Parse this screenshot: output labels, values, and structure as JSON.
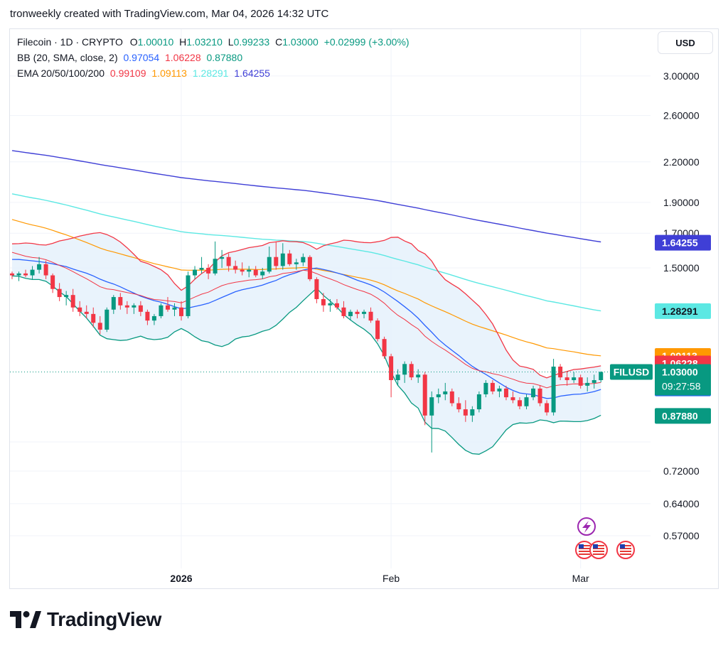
{
  "byline": "tronweekly created with TradingView.com, Mar 04, 2026 14:32 UTC",
  "currency_button": "USD",
  "brand": "TradingView",
  "legend": {
    "symbol": "Filecoin · 1D · CRYPTO",
    "ohlc": [
      {
        "label": "O",
        "value": "1.00010"
      },
      {
        "label": "H",
        "value": "1.03210"
      },
      {
        "label": "L",
        "value": "0.99233"
      },
      {
        "label": "C",
        "value": "1.03000"
      }
    ],
    "change": "+0.02999 (+3.00%)",
    "bb_label": "BB (20, SMA, close, 2)",
    "bb_values": [
      "0.97054",
      "1.06228",
      "0.87880"
    ],
    "ema_label": "EMA 20/50/100/200",
    "ema_values": [
      "0.99109",
      "1.09113",
      "1.28291",
      "1.64255"
    ]
  },
  "colors": {
    "up": "#089981",
    "down": "#f23645",
    "ema20": "#f23645",
    "ema50": "#ff9800",
    "ema100": "#5ce8e3",
    "ema200": "#3f3fd6",
    "bb_basis": "#2962ff",
    "bb_upper": "#f23645",
    "bb_lower": "#089981",
    "bb_fill": "#e3f0fb"
  },
  "chart_data": {
    "type": "candlestick",
    "y_scale": "log",
    "y_ticks": [
      "3.00000",
      "2.60000",
      "2.20000",
      "1.90000",
      "1.70000",
      "1.50000",
      "0.72000",
      "0.64000",
      "0.57000"
    ],
    "x_ticks": [
      "2026",
      "Feb",
      "Mar"
    ],
    "dates": [
      "2025-12-07",
      "2025-12-08",
      "2025-12-09",
      "2025-12-10",
      "2025-12-11",
      "2025-12-12",
      "2025-12-13",
      "2025-12-14",
      "2025-12-15",
      "2025-12-16",
      "2025-12-17",
      "2025-12-18",
      "2025-12-19",
      "2025-12-20",
      "2025-12-21",
      "2025-12-22",
      "2025-12-23",
      "2025-12-24",
      "2025-12-25",
      "2025-12-26",
      "2025-12-27",
      "2025-12-28",
      "2025-12-29",
      "2025-12-30",
      "2025-12-31",
      "2026-01-01",
      "2026-01-02",
      "2026-01-03",
      "2026-01-04",
      "2026-01-05",
      "2026-01-06",
      "2026-01-07",
      "2026-01-08",
      "2026-01-09",
      "2026-01-10",
      "2026-01-11",
      "2026-01-12",
      "2026-01-13",
      "2026-01-14",
      "2026-01-15",
      "2026-01-16",
      "2026-01-17",
      "2026-01-18",
      "2026-01-19",
      "2026-01-20",
      "2026-01-21",
      "2026-01-22",
      "2026-01-23",
      "2026-01-24",
      "2026-01-25",
      "2026-01-26",
      "2026-01-27",
      "2026-01-28",
      "2026-01-29",
      "2026-01-30",
      "2026-01-31",
      "2026-02-01",
      "2026-02-02",
      "2026-02-03",
      "2026-02-04",
      "2026-02-05",
      "2026-02-06",
      "2026-02-07",
      "2026-02-08",
      "2026-02-09",
      "2026-02-10",
      "2026-02-11",
      "2026-02-12",
      "2026-02-13",
      "2026-02-14",
      "2026-02-15",
      "2026-02-16",
      "2026-02-17",
      "2026-02-18",
      "2026-02-19",
      "2026-02-20",
      "2026-02-21",
      "2026-02-22",
      "2026-02-23",
      "2026-02-24",
      "2026-02-25",
      "2026-02-26",
      "2026-02-27",
      "2026-02-28",
      "2026-03-01",
      "2026-03-02",
      "2026-03-03",
      "2026-03-04"
    ],
    "candles": [
      [
        1.47,
        1.48,
        1.44,
        1.46
      ],
      [
        1.46,
        1.48,
        1.43,
        1.47
      ],
      [
        1.47,
        1.49,
        1.45,
        1.46
      ],
      [
        1.46,
        1.51,
        1.44,
        1.49
      ],
      [
        1.49,
        1.56,
        1.47,
        1.52
      ],
      [
        1.52,
        1.54,
        1.44,
        1.46
      ],
      [
        1.46,
        1.47,
        1.37,
        1.39
      ],
      [
        1.39,
        1.42,
        1.33,
        1.35
      ],
      [
        1.35,
        1.38,
        1.31,
        1.36
      ],
      [
        1.36,
        1.39,
        1.28,
        1.3
      ],
      [
        1.3,
        1.33,
        1.26,
        1.28
      ],
      [
        1.28,
        1.31,
        1.25,
        1.27
      ],
      [
        1.27,
        1.3,
        1.21,
        1.23
      ],
      [
        1.23,
        1.26,
        1.18,
        1.2
      ],
      [
        1.2,
        1.3,
        1.19,
        1.29
      ],
      [
        1.29,
        1.36,
        1.27,
        1.35
      ],
      [
        1.35,
        1.37,
        1.29,
        1.31
      ],
      [
        1.31,
        1.33,
        1.27,
        1.3
      ],
      [
        1.3,
        1.32,
        1.27,
        1.31
      ],
      [
        1.31,
        1.33,
        1.26,
        1.28
      ],
      [
        1.28,
        1.29,
        1.22,
        1.24
      ],
      [
        1.24,
        1.27,
        1.22,
        1.26
      ],
      [
        1.26,
        1.32,
        1.25,
        1.31
      ],
      [
        1.31,
        1.35,
        1.28,
        1.29
      ],
      [
        1.29,
        1.32,
        1.26,
        1.3
      ],
      [
        1.3,
        1.33,
        1.24,
        1.26
      ],
      [
        1.26,
        1.48,
        1.25,
        1.46
      ],
      [
        1.46,
        1.51,
        1.44,
        1.49
      ],
      [
        1.49,
        1.56,
        1.47,
        1.5
      ],
      [
        1.5,
        1.52,
        1.44,
        1.47
      ],
      [
        1.47,
        1.65,
        1.46,
        1.55
      ],
      [
        1.55,
        1.6,
        1.5,
        1.56
      ],
      [
        1.56,
        1.58,
        1.48,
        1.51
      ],
      [
        1.51,
        1.54,
        1.47,
        1.49
      ],
      [
        1.49,
        1.53,
        1.46,
        1.48
      ],
      [
        1.48,
        1.51,
        1.45,
        1.49
      ],
      [
        1.49,
        1.51,
        1.45,
        1.46
      ],
      [
        1.46,
        1.5,
        1.44,
        1.48
      ],
      [
        1.48,
        1.62,
        1.47,
        1.56
      ],
      [
        1.56,
        1.65,
        1.49,
        1.51
      ],
      [
        1.51,
        1.64,
        1.49,
        1.58
      ],
      [
        1.58,
        1.6,
        1.51,
        1.52
      ],
      [
        1.52,
        1.55,
        1.49,
        1.53
      ],
      [
        1.53,
        1.58,
        1.51,
        1.56
      ],
      [
        1.56,
        1.57,
        1.43,
        1.44
      ],
      [
        1.44,
        1.45,
        1.32,
        1.34
      ],
      [
        1.34,
        1.37,
        1.28,
        1.31
      ],
      [
        1.31,
        1.34,
        1.28,
        1.32
      ],
      [
        1.32,
        1.34,
        1.29,
        1.3
      ],
      [
        1.3,
        1.33,
        1.25,
        1.26
      ],
      [
        1.26,
        1.29,
        1.24,
        1.28
      ],
      [
        1.28,
        1.29,
        1.25,
        1.27
      ],
      [
        1.27,
        1.29,
        1.25,
        1.28
      ],
      [
        1.28,
        1.3,
        1.23,
        1.24
      ],
      [
        1.24,
        1.25,
        1.15,
        1.16
      ],
      [
        1.16,
        1.17,
        1.08,
        1.09
      ],
      [
        1.09,
        1.1,
        0.94,
        1.0
      ],
      [
        1.0,
        1.04,
        0.98,
        1.02
      ],
      [
        1.02,
        1.07,
        0.99,
        1.06
      ],
      [
        1.06,
        1.07,
        1.0,
        1.01
      ],
      [
        1.01,
        1.04,
        0.99,
        1.02
      ],
      [
        1.02,
        1.03,
        0.85,
        0.88
      ],
      [
        0.88,
        0.96,
        0.77,
        0.94
      ],
      [
        0.94,
        0.97,
        0.92,
        0.95
      ],
      [
        0.95,
        0.99,
        0.93,
        0.96
      ],
      [
        0.96,
        0.97,
        0.91,
        0.92
      ],
      [
        0.92,
        0.94,
        0.89,
        0.9
      ],
      [
        0.9,
        0.93,
        0.86,
        0.88
      ],
      [
        0.88,
        0.91,
        0.86,
        0.9
      ],
      [
        0.9,
        0.96,
        0.89,
        0.95
      ],
      [
        0.95,
        1.0,
        0.94,
        0.99
      ],
      [
        0.99,
        1.0,
        0.95,
        0.96
      ],
      [
        0.96,
        0.98,
        0.94,
        0.97
      ],
      [
        0.97,
        0.98,
        0.93,
        0.94
      ],
      [
        0.94,
        0.96,
        0.92,
        0.93
      ],
      [
        0.93,
        0.94,
        0.9,
        0.91
      ],
      [
        0.91,
        0.95,
        0.9,
        0.94
      ],
      [
        0.94,
        0.98,
        0.93,
        0.97
      ],
      [
        0.97,
        0.98,
        0.91,
        0.92
      ],
      [
        0.92,
        0.93,
        0.88,
        0.89
      ],
      [
        0.89,
        1.08,
        0.88,
        1.05
      ],
      [
        1.05,
        1.06,
        1.0,
        1.01
      ],
      [
        1.01,
        1.03,
        0.98,
        1.0
      ],
      [
        1.0,
        1.03,
        0.99,
        1.01
      ],
      [
        1.01,
        1.02,
        0.97,
        0.98
      ],
      [
        0.98,
        1.01,
        0.96,
        0.99
      ],
      [
        0.99,
        1.02,
        0.97,
        1.0
      ],
      [
        1.0,
        1.032,
        0.992,
        1.03
      ]
    ],
    "price_labels": [
      {
        "text": "1.64255",
        "value": 1.64255,
        "color": "#3f3fd6"
      },
      {
        "text": "1.28291",
        "value": 1.28291,
        "color": "#5ce8e3"
      },
      {
        "text": "1.09113",
        "value": 1.09113,
        "color": "#ff9800"
      },
      {
        "text": "1.06228",
        "value": 1.06228,
        "color": "#f23645"
      },
      {
        "text": "0.99109",
        "value": 0.99109,
        "color": "#f23645"
      },
      {
        "text": "0.97054",
        "value": 0.97054,
        "color": "#2962ff"
      },
      {
        "text": "0.87880",
        "value": 0.8788,
        "color": "#089981"
      }
    ],
    "last_price": {
      "symbol": "FILUSD",
      "price": "1.03000",
      "countdown": "09:27:58",
      "value": 1.03
    }
  }
}
